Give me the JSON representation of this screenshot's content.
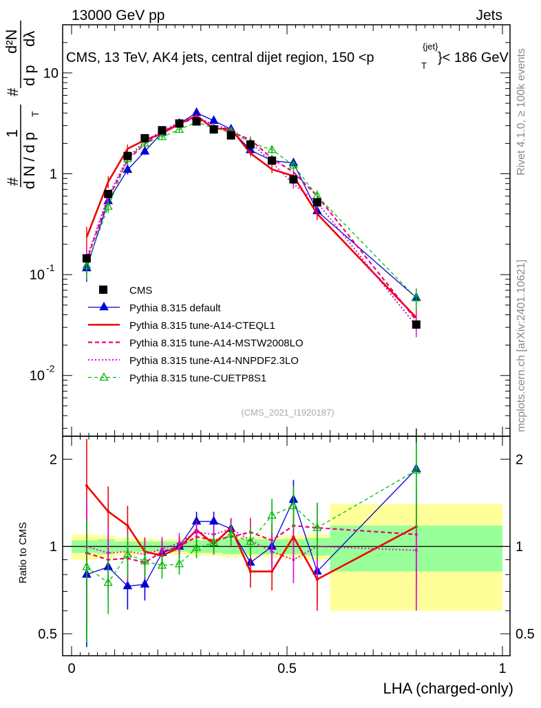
{
  "header": {
    "left": "13000 GeV pp",
    "right": "Jets",
    "title": "CMS, 13 TeV, AK4 jets, central dijet region, 150 <p",
    "title_sup": "{jet}",
    "title_sub": "T",
    "title_end": "}< 186 GeV"
  },
  "side_labels": {
    "rivet": "Rivet 4.1.0, ≥ 100k events",
    "mcplots": "mcplots.cern.ch [arXiv:2401.10621]"
  },
  "watermark": "(CMS_2021_I1920187)",
  "yaxis_main": {
    "frac_one": "1",
    "frac_dN": "d N / d p",
    "frac_sub": "T",
    "hash1": "#",
    "num": "d²N",
    "hash2": "#",
    "den_a": "d p",
    "den_b": "dλ",
    "ticks": [
      {
        "label": "10",
        "exp": "-2",
        "value": 0.01
      },
      {
        "label": "10",
        "exp": "-1",
        "value": 0.1
      },
      {
        "label": "1",
        "exp": "",
        "value": 1
      },
      {
        "label": "10",
        "exp": "",
        "value": 10
      }
    ]
  },
  "yaxis_ratio": {
    "label": "Ratio to CMS",
    "ticks": [
      {
        "label": "0.5",
        "value": 0.5
      },
      {
        "label": "1",
        "value": 1
      },
      {
        "label": "2",
        "value": 2
      }
    ]
  },
  "xaxis": {
    "label": "LHA (charged-only)",
    "ticks": [
      {
        "label": "0",
        "value": 0
      },
      {
        "label": "0.5",
        "value": 0.5
      },
      {
        "label": "1",
        "value": 1
      }
    ]
  },
  "legend": [
    {
      "name": "CMS",
      "key": "cms"
    },
    {
      "name": "Pythia 8.315 default",
      "key": "default"
    },
    {
      "name": "Pythia 8.315 tune-A14-CTEQL1",
      "key": "cteql1"
    },
    {
      "name": "Pythia 8.315 tune-A14-MSTW2008LO",
      "key": "mstw"
    },
    {
      "name": "Pythia 8.315 tune-A14-NNPDF2.3LO",
      "key": "nnpdf"
    },
    {
      "name": "Pythia 8.315 tune-CUETP8S1",
      "key": "cuet"
    }
  ],
  "colors": {
    "cms": "#000000",
    "default": "#0000dd",
    "cteql1": "#ee0000",
    "mstw": "#e8007a",
    "nnpdf": "#dd00dd",
    "cuet": "#00bb00",
    "band_outer": "#ffff99",
    "band_inner": "#99ff99"
  },
  "chart_data": {
    "type": "line",
    "log_y": true,
    "xlim": [
      0,
      1
    ],
    "ylim": [
      0.0025,
      30
    ],
    "ratio_ylim": [
      0.42,
      2.4
    ],
    "x": [
      0.035,
      0.085,
      0.13,
      0.17,
      0.21,
      0.25,
      0.29,
      0.33,
      0.37,
      0.415,
      0.465,
      0.515,
      0.57,
      0.8
    ],
    "bin_edges": [
      0,
      0.06,
      0.1,
      0.15,
      0.19,
      0.23,
      0.27,
      0.31,
      0.35,
      0.39,
      0.44,
      0.49,
      0.54,
      0.6,
      1.0
    ],
    "reference": {
      "name": "CMS",
      "values": [
        0.145,
        0.63,
        1.5,
        2.25,
        2.7,
        3.15,
        3.3,
        2.75,
        2.4,
        1.95,
        1.35,
        0.88,
        0.52,
        0.032
      ],
      "band_inner": [
        0.05,
        0.06,
        0.04,
        0.04,
        0.04,
        0.04,
        0.05,
        0.05,
        0.06,
        0.06,
        0.06,
        0.06,
        0.07,
        0.18
      ],
      "band_outer": [
        0.1,
        0.09,
        0.07,
        0.06,
        0.06,
        0.06,
        0.07,
        0.07,
        0.08,
        0.08,
        0.08,
        0.09,
        0.1,
        0.4
      ]
    },
    "series": [
      {
        "name": "Pythia 8.315 default",
        "key": "default",
        "ratio": [
          0.8,
          0.85,
          0.73,
          0.74,
          0.95,
          1.0,
          1.22,
          1.22,
          1.15,
          0.88,
          1.0,
          1.45,
          0.82,
          1.85
        ]
      },
      {
        "name": "Pythia 8.315 tune-A14-CTEQL1",
        "key": "cteql1",
        "ratio": [
          1.62,
          1.32,
          1.18,
          0.96,
          0.93,
          0.99,
          1.14,
          1.02,
          1.16,
          0.82,
          0.82,
          1.08,
          0.77,
          1.17
        ]
      },
      {
        "name": "Pythia 8.315 tune-A14-MSTW2008LO",
        "key": "mstw",
        "ratio": [
          0.95,
          0.9,
          0.91,
          0.88,
          0.96,
          1.0,
          1.08,
          1.05,
          1.08,
          1.12,
          1.05,
          1.18,
          1.16,
          1.1
        ]
      },
      {
        "name": "Pythia 8.315 tune-A14-NNPDF2.3LO",
        "key": "nnpdf",
        "ratio": [
          1.0,
          0.95,
          0.96,
          0.94,
          0.98,
          1.03,
          1.12,
          1.1,
          1.15,
          1.05,
          0.96,
          0.9,
          1.0,
          0.97
        ]
      },
      {
        "name": "Pythia 8.315 tune-CUETP8S1",
        "key": "cuet",
        "ratio": [
          0.85,
          0.75,
          0.94,
          0.89,
          0.86,
          0.87,
          0.99,
          1.03,
          1.1,
          1.04,
          1.28,
          1.38,
          1.16,
          1.83
        ]
      }
    ],
    "ratio_errors": [
      0.45,
      0.22,
      0.17,
      0.12,
      0.1,
      0.08,
      0.08,
      0.08,
      0.08,
      0.12,
      0.14,
      0.17,
      0.22,
      0.38
    ]
  }
}
